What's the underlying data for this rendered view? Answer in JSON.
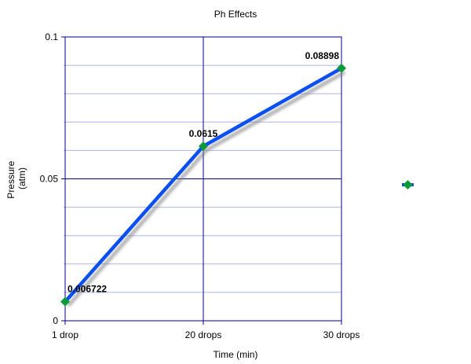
{
  "chart_data": {
    "type": "line",
    "title": "Ph Effects",
    "xlabel": "Time (min)",
    "ylabel": [
      "Pressure",
      "(atm)"
    ],
    "categories": [
      "1 drop",
      "20 drops",
      "30 drops"
    ],
    "series": [
      {
        "name": "",
        "values": [
          0.006722,
          0.0615,
          0.08898
        ],
        "labels": [
          "0.006722",
          "0.0615",
          "0.08898"
        ],
        "color": "#0a4ff0",
        "marker_color": "#0a9a3a"
      }
    ],
    "ylim": [
      0,
      0.1
    ],
    "y_ticks": [
      "0",
      "0.05",
      "0.1"
    ],
    "y_tick_values": [
      0,
      0.05,
      0.1
    ],
    "minor_grid_step": 0.01,
    "grid": true,
    "legend": {
      "position": "right",
      "entries": [
        ""
      ]
    }
  },
  "colors": {
    "axis": "#00008b",
    "minor_grid": "#b0b4e8",
    "line": "#0a4ff0",
    "marker": "#0a9a3a"
  }
}
